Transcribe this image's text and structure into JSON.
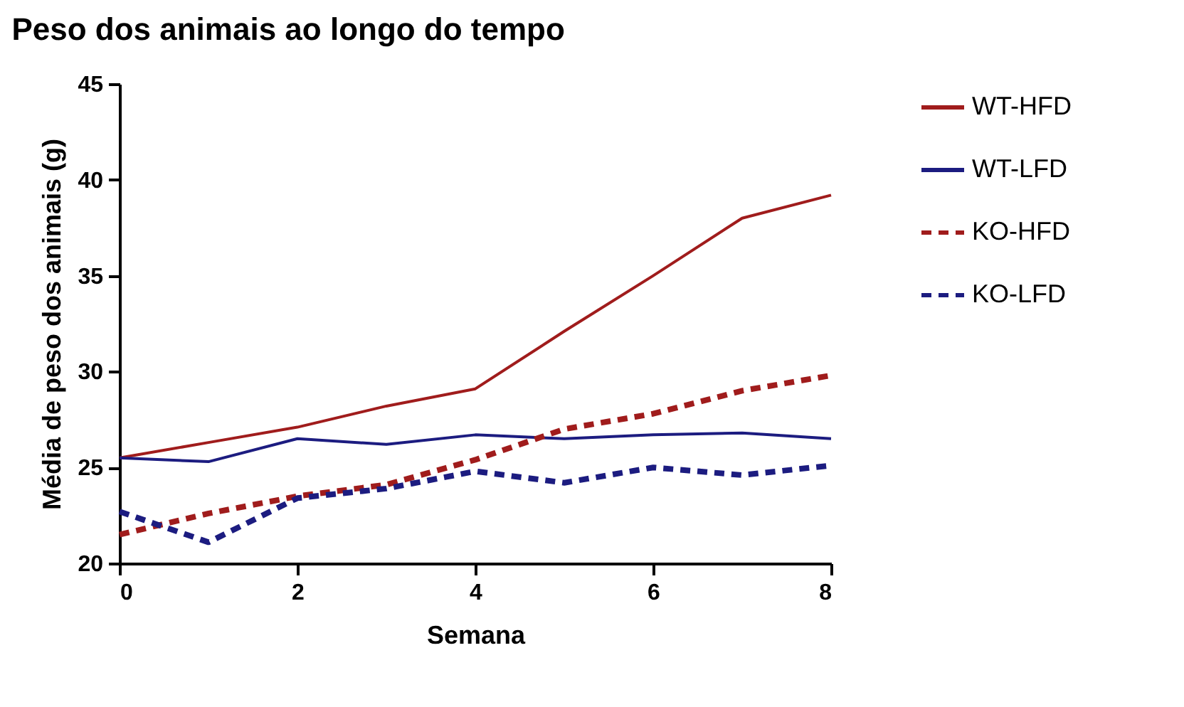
{
  "chart_data": {
    "type": "line",
    "title": "Peso dos animais ao longo do tempo",
    "xlabel": "Semana",
    "ylabel": "Média de peso dos animais (g)",
    "x": [
      0,
      1,
      2,
      3,
      4,
      5,
      6,
      7,
      8
    ],
    "series": [
      {
        "name": "WT-HFD",
        "color": "#a01c1c",
        "line_style": "solid",
        "values": [
          25.5,
          26.3,
          27.1,
          28.2,
          29.1,
          32.1,
          35.0,
          38.0,
          39.2
        ]
      },
      {
        "name": "WT-LFD",
        "color": "#1c1c80",
        "line_style": "solid",
        "values": [
          25.5,
          25.3,
          26.5,
          26.2,
          26.7,
          26.5,
          26.7,
          26.8,
          26.5
        ]
      },
      {
        "name": "KO-HFD",
        "color": "#a01c1c",
        "line_style": "dashed",
        "values": [
          21.5,
          22.6,
          23.5,
          24.1,
          25.4,
          27.0,
          27.8,
          29.0,
          29.8
        ]
      },
      {
        "name": "KO-LFD",
        "color": "#1c1c80",
        "line_style": "dashed",
        "values": [
          22.7,
          21.1,
          23.4,
          23.9,
          24.8,
          24.2,
          25.0,
          24.6,
          25.1
        ]
      }
    ],
    "xlim": [
      0,
      8
    ],
    "xticks": [
      0,
      2,
      4,
      6,
      8
    ],
    "ylim": [
      20,
      45
    ],
    "yticks": [
      20,
      25,
      30,
      35,
      40,
      45
    ],
    "grid": false,
    "legend": "right",
    "marker": "none"
  }
}
